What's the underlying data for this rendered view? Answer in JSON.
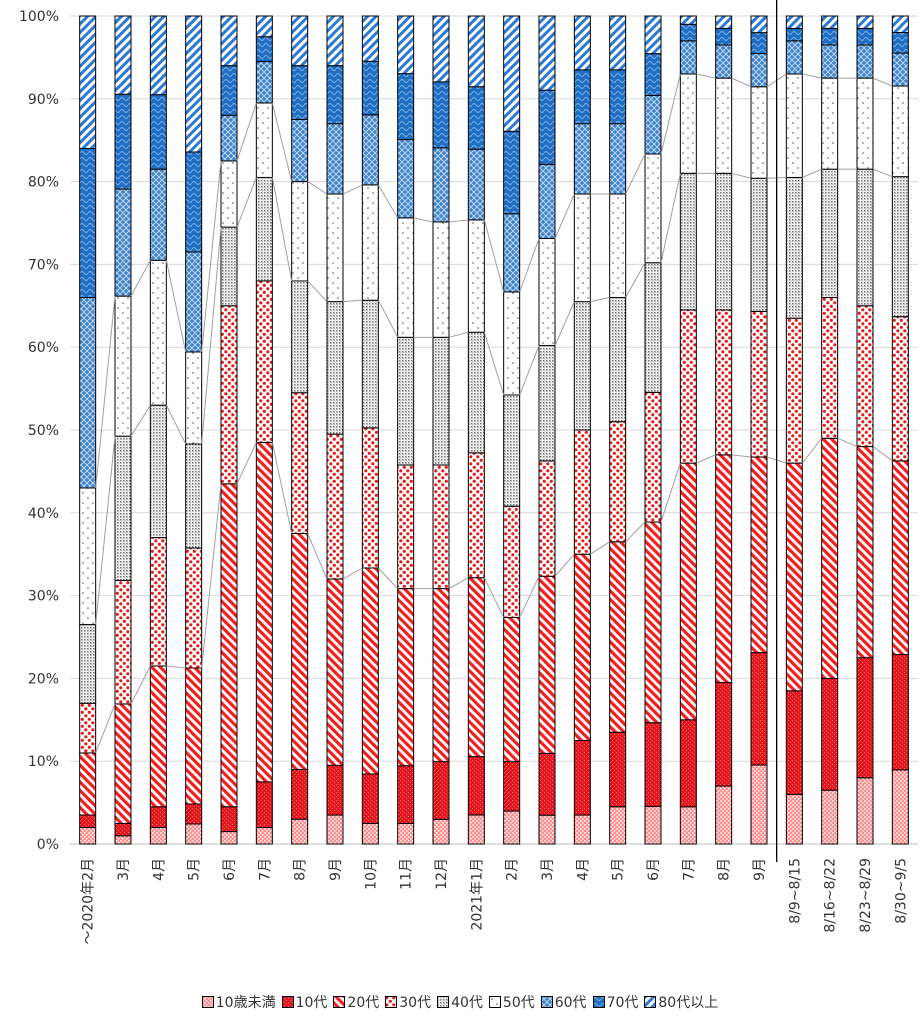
{
  "chart_data": {
    "type": "bar",
    "stacked": true,
    "percent": true,
    "ylim": [
      0,
      100
    ],
    "y_ticks": [
      "0%",
      "10%",
      "20%",
      "30%",
      "40%",
      "50%",
      "60%",
      "70%",
      "80%",
      "90%",
      "100%"
    ],
    "categories": [
      "～2020年2月",
      "3月",
      "4月",
      "5月",
      "6月",
      "7月",
      "8月",
      "9月",
      "10月",
      "11月",
      "12月",
      "2021年1月",
      "2月",
      "3月",
      "4月",
      "5月",
      "6月",
      "7月",
      "8月",
      "9月",
      "8/9~8/15",
      "8/16~8/22",
      "8/23~8/29",
      "8/30~9/5"
    ],
    "separator_after_index": 19,
    "series": [
      {
        "name": "10歳未満",
        "color": "#ff9a9a",
        "values": [
          2,
          1,
          2,
          2.5,
          1.5,
          2,
          3,
          3.5,
          2.5,
          2.5,
          3,
          3.5,
          4,
          3.5,
          3.5,
          4.5,
          4.5,
          4.5,
          7,
          9.5,
          6,
          6.5,
          8,
          9
        ]
      },
      {
        "name": "10代",
        "color": "#ee1c1c",
        "values": [
          1.5,
          1.5,
          2.5,
          2.5,
          3,
          5.5,
          6,
          6,
          6,
          7,
          7,
          7,
          6,
          7.5,
          9,
          9,
          10,
          10.5,
          12.5,
          13.5,
          12.5,
          13.5,
          14.5,
          14
        ]
      },
      {
        "name": "20代",
        "color": "#f05050",
        "values": [
          7.5,
          14.5,
          17,
          17,
          39,
          41,
          28.5,
          22.5,
          25,
          21.5,
          21,
          21.5,
          17.5,
          21.5,
          22.5,
          23,
          24,
          31,
          27.5,
          23.5,
          27.5,
          29,
          25.5,
          23.5
        ]
      },
      {
        "name": "30代",
        "color": "#ff6666",
        "values": [
          6,
          15,
          15.5,
          15,
          21.5,
          19.5,
          17,
          17.5,
          17,
          15,
          15,
          15,
          13.5,
          14,
          15,
          14.5,
          15.5,
          18.5,
          17.5,
          17.5,
          17.5,
          17,
          17,
          17.5
        ]
      },
      {
        "name": "40代",
        "color": "#9a9a9a",
        "values": [
          9.5,
          17.5,
          16,
          13,
          9.5,
          12.5,
          13.5,
          16,
          15.5,
          15.5,
          15.5,
          14.5,
          13.5,
          14,
          15.5,
          15,
          15.5,
          16.5,
          16.5,
          16,
          17,
          15.5,
          16.5,
          17
        ]
      },
      {
        "name": "50代",
        "color": "#ffffff",
        "values": [
          16.5,
          17,
          17.5,
          11.5,
          8,
          9,
          12,
          13,
          14,
          14.5,
          14,
          13.5,
          12.5,
          13,
          13,
          12.5,
          13,
          12,
          11.5,
          11,
          12.5,
          11,
          11,
          11
        ]
      },
      {
        "name": "60代",
        "color": "#5b9bd5",
        "values": [
          23,
          13,
          11,
          12.5,
          5.5,
          5,
          7.5,
          8.5,
          8.5,
          9.5,
          9,
          8.5,
          9.5,
          9,
          8.5,
          8.5,
          7,
          4,
          4,
          4,
          4,
          4,
          4,
          4
        ]
      },
      {
        "name": "70代",
        "color": "#2e75b6",
        "values": [
          18,
          11.5,
          9,
          12.5,
          6,
          3,
          6.5,
          7,
          6.5,
          8,
          8,
          7.5,
          10,
          9,
          6.5,
          6.5,
          5,
          2,
          2,
          2.5,
          1.5,
          2,
          2,
          2.5
        ]
      },
      {
        "name": "80代以上",
        "color": "#4a8ed6",
        "values": [
          16,
          9.5,
          9.5,
          17,
          6,
          2.5,
          6,
          6,
          5.5,
          7,
          8,
          8.5,
          14,
          9,
          6.5,
          6.5,
          4.5,
          1,
          1.5,
          2,
          1.5,
          1.5,
          1.5,
          2
        ]
      }
    ]
  }
}
